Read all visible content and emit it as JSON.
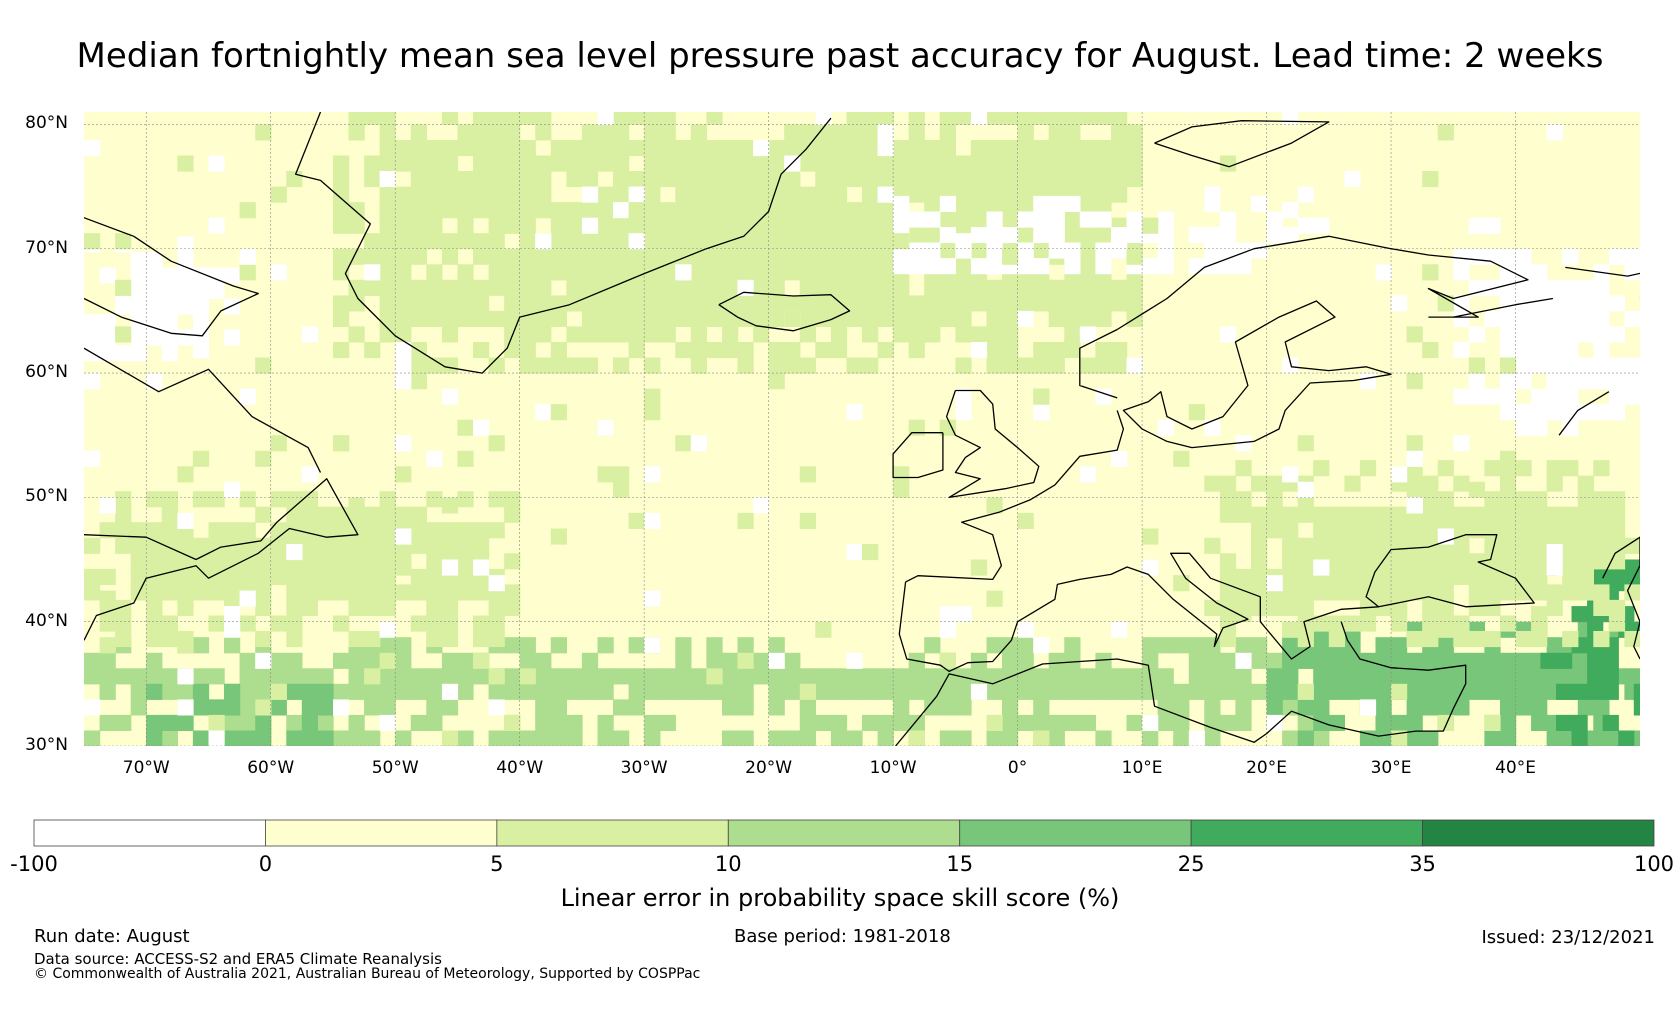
{
  "title": "Median fortnightly mean sea level pressure past accuracy for August. Lead time: 2 weeks",
  "map": {
    "lon_range": [
      -75,
      50
    ],
    "lat_range": [
      30,
      81
    ],
    "lat_ticks": [
      {
        "value": 80,
        "label": "80°N"
      },
      {
        "value": 70,
        "label": "70°N"
      },
      {
        "value": 60,
        "label": "60°N"
      },
      {
        "value": 50,
        "label": "50°N"
      },
      {
        "value": 40,
        "label": "40°N"
      },
      {
        "value": 30,
        "label": "30°N"
      }
    ],
    "lon_ticks": [
      {
        "value": -70,
        "label": "70°W"
      },
      {
        "value": -60,
        "label": "60°W"
      },
      {
        "value": -50,
        "label": "50°W"
      },
      {
        "value": -40,
        "label": "40°W"
      },
      {
        "value": -30,
        "label": "30°W"
      },
      {
        "value": -20,
        "label": "20°W"
      },
      {
        "value": -10,
        "label": "10°W"
      },
      {
        "value": 0,
        "label": "0°"
      },
      {
        "value": 10,
        "label": "10°E"
      },
      {
        "value": 20,
        "label": "20°E"
      },
      {
        "value": 30,
        "label": "30°E"
      },
      {
        "value": 40,
        "label": "40°E"
      }
    ],
    "gridlines": true,
    "skill_field": {
      "units": "%",
      "approximate_regions": [
        {
          "category": "10 to 15",
          "lon": [
            -75,
            25
          ],
          "lat": [
            30,
            38
          ]
        },
        {
          "category": "15 to 25",
          "lon": [
            -70,
            -55
          ],
          "lat": [
            30,
            35
          ]
        },
        {
          "category": "15 to 25",
          "lon": [
            20,
            50
          ],
          "lat": [
            30,
            40
          ]
        },
        {
          "category": "25 to 35",
          "lon": [
            42,
            50
          ],
          "lat": [
            30,
            46
          ]
        },
        {
          "category": "5 to 10",
          "lon": [
            -75,
            -40
          ],
          "lat": [
            38,
            50
          ]
        },
        {
          "category": "5 to 10",
          "lon": [
            -55,
            10
          ],
          "lat": [
            60,
            81
          ]
        },
        {
          "category": "5 to 10",
          "lon": [
            15,
            50
          ],
          "lat": [
            38,
            52
          ]
        },
        {
          "category": "-100 to 0",
          "lon": [
            -10,
            22
          ],
          "lat": [
            68,
            74
          ]
        },
        {
          "category": "-100 to 0",
          "lon": [
            -75,
            -63
          ],
          "lat": [
            61,
            70
          ]
        },
        {
          "category": "-100 to 0",
          "lon": [
            35,
            50
          ],
          "lat": [
            55,
            70
          ]
        }
      ]
    },
    "colors": {
      "ocean_default": "#fefece",
      "coastline": "#000000",
      "gridline": "#888888"
    }
  },
  "colorbar": {
    "label": "Linear error in probability space skill score (%)",
    "ticks": [
      "-100",
      "0",
      "5",
      "10",
      "15",
      "25",
      "35",
      "100"
    ],
    "colors": [
      "#ffffff",
      "#fefece",
      "#d9f0a3",
      "#addd8e",
      "#78c679",
      "#41ab5d",
      "#238443"
    ]
  },
  "footer": {
    "run_date": "Run date: August",
    "base_period": "Base period: 1981-2018",
    "issued": "Issued: 23/12/2021",
    "data_source": "Data source: ACCESS-S2 and ERA5 Climate Reanalysis",
    "copyright": "© Commonwealth of Australia 2021, Australian Bureau of Meteorology, Supported by COSPPac"
  }
}
